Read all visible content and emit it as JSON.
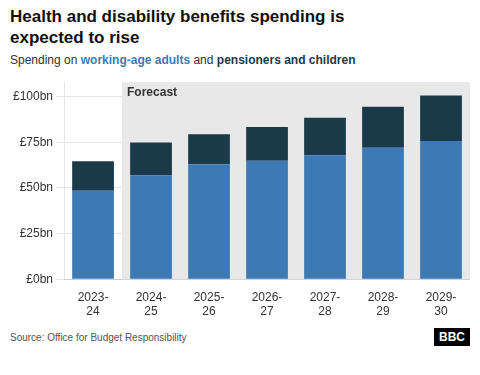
{
  "chart_data": {
    "type": "bar",
    "stacked": true,
    "title": [
      "Health and disability benefits spending is",
      "expected to rise"
    ],
    "subtitle": "Spending on working-age adults and pensioners and children",
    "categories": [
      "2023-\n24",
      "2024-\n25",
      "2025-\n26",
      "2026-\n27",
      "2027-\n28",
      "2028-\n29",
      "2029-\n30"
    ],
    "series": [
      {
        "name": "working-age adults",
        "color": "#3d7ab5",
        "values": [
          48.5,
          57.0,
          63.0,
          65.0,
          68.0,
          72.0,
          75.7
        ]
      },
      {
        "name": "pensioners and children",
        "color": "#1a3a4a",
        "values": [
          16.2,
          18.0,
          16.5,
          18.5,
          20.5,
          22.5,
          25.0
        ]
      }
    ],
    "ylim": [
      0,
      108
    ],
    "yticks": [
      {
        "value": 0,
        "label": "£0bn"
      },
      {
        "value": 25,
        "label": "£25bn"
      },
      {
        "value": 50,
        "label": "£50bn"
      },
      {
        "value": 75,
        "label": "£75bn"
      },
      {
        "value": 100,
        "label": "£100bn"
      }
    ],
    "grid": true,
    "annotations": [
      {
        "text": "Forecast",
        "x": "2024-\n25",
        "color": "#e8e8e8"
      }
    ],
    "source": "Source: Office for Budget Responsibility",
    "credit": "BBC"
  }
}
